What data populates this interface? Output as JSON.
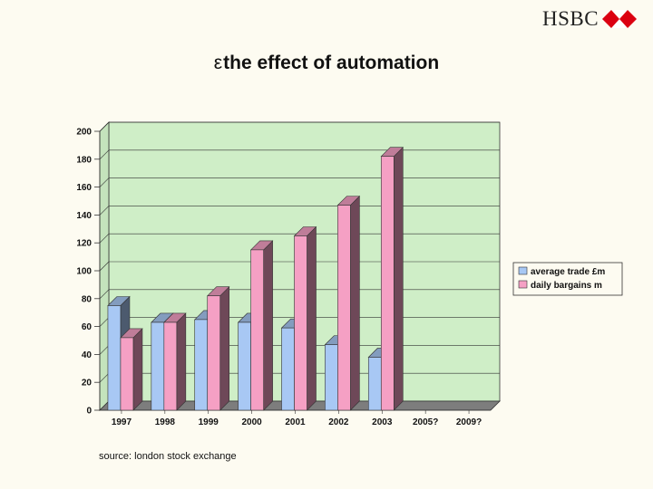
{
  "header": {
    "brand": "HSBC",
    "title_glyph": "ε",
    "title": "the effect of automation"
  },
  "footer": {
    "source": "source: london stock exchange"
  },
  "colors": {
    "background": "#fdfbf1",
    "plot_area": "#cfeec7",
    "series_average_trade": "#a8c8f4",
    "series_daily_bargains": "#f5a0c4",
    "logo_red": "#db0011"
  },
  "chart_data": {
    "type": "bar",
    "title": "",
    "xlabel": "",
    "ylabel": "",
    "ylim": [
      0,
      200
    ],
    "yticks": [
      0,
      20,
      40,
      60,
      80,
      100,
      120,
      140,
      160,
      180,
      200
    ],
    "ytick_labels": [
      "0",
      "20",
      "40",
      "60",
      "80",
      "100",
      "120",
      "140",
      "160",
      "180",
      "200"
    ],
    "categories": [
      "1997",
      "1998",
      "1999",
      "2000",
      "2001",
      "2002",
      "2003",
      "2005?",
      "2009?"
    ],
    "series": [
      {
        "name": "average trade £m",
        "values": [
          75,
          63,
          65,
          63,
          59,
          47,
          38,
          null,
          null
        ]
      },
      {
        "name": "daily bargains m",
        "values": [
          52,
          63,
          82,
          115,
          125,
          147,
          182,
          null,
          null
        ]
      }
    ],
    "grid": true,
    "legend": "right",
    "style": "3d"
  }
}
